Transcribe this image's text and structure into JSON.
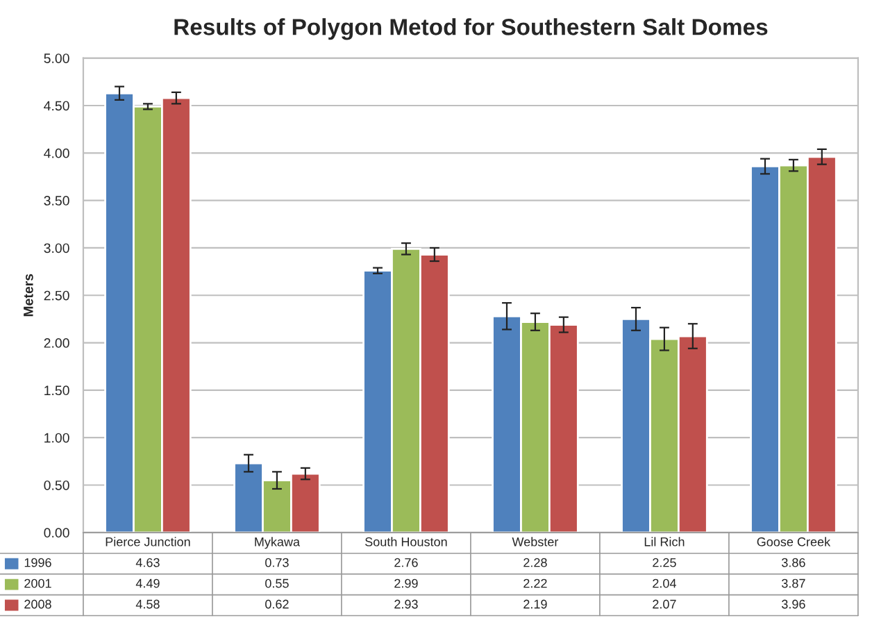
{
  "chart_data": {
    "type": "bar",
    "title": "Results of Polygon Metod for Southestern Salt Domes",
    "ylabel": "Meters",
    "categories": [
      "Pierce Junction",
      "Mykawa",
      "South Houston",
      "Webster",
      "Lil Rich",
      "Goose Creek"
    ],
    "series": [
      {
        "name": "1996",
        "color": "#4f81bd",
        "values": [
          4.63,
          0.73,
          2.76,
          2.28,
          2.25,
          3.86
        ],
        "errors": [
          0.07,
          0.09,
          0.03,
          0.14,
          0.12,
          0.08
        ]
      },
      {
        "name": "2001",
        "color": "#9bbb59",
        "values": [
          4.49,
          0.55,
          2.99,
          2.22,
          2.04,
          3.87
        ],
        "errors": [
          0.03,
          0.09,
          0.06,
          0.09,
          0.12,
          0.06
        ]
      },
      {
        "name": "2008",
        "color": "#c0504d",
        "values": [
          4.58,
          0.62,
          2.93,
          2.19,
          2.07,
          3.96
        ],
        "errors": [
          0.06,
          0.06,
          0.07,
          0.08,
          0.13,
          0.08
        ]
      }
    ],
    "ylim": [
      0,
      5
    ],
    "yticks": [
      {
        "value": 0,
        "label": "0.00"
      },
      {
        "value": 0.5,
        "label": "0.50"
      },
      {
        "value": 1,
        "label": "1.00"
      },
      {
        "value": 1.5,
        "label": "1.50"
      },
      {
        "value": 2,
        "label": "2.00"
      },
      {
        "value": 2.5,
        "label": "2.50"
      },
      {
        "value": 3,
        "label": "3.00"
      },
      {
        "value": 3.5,
        "label": "3.50"
      },
      {
        "value": 4,
        "label": "4.00"
      },
      {
        "value": 4.5,
        "label": "4.50"
      },
      {
        "value": 5,
        "label": "5.00"
      }
    ],
    "grid": "y",
    "legend": "bottom",
    "data_labels": true
  }
}
